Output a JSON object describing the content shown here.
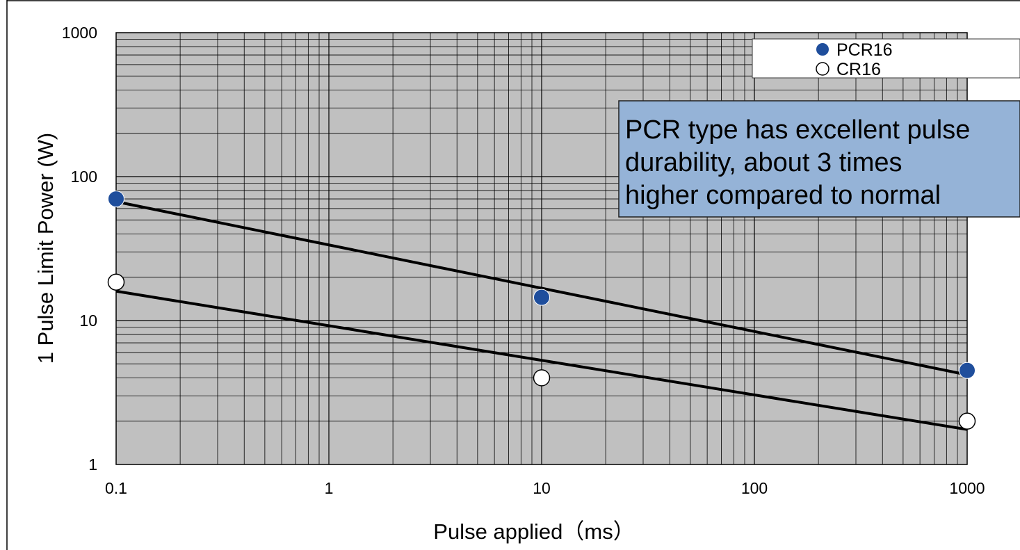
{
  "chart_data": {
    "type": "scatter",
    "xlabel": "Pulse applied（ms）",
    "ylabel": "1 Pulse Limit Power (W)",
    "x_scale": "log",
    "y_scale": "log",
    "xlim": [
      0.1,
      1000
    ],
    "ylim": [
      1,
      1000
    ],
    "x_ticks": [
      0.1,
      1,
      10,
      100,
      1000
    ],
    "x_tick_labels": [
      "0.1",
      "1",
      "10",
      "100",
      "1000"
    ],
    "y_ticks": [
      1,
      10,
      100,
      1000
    ],
    "y_tick_labels": [
      "1",
      "10",
      "100",
      "1000"
    ],
    "grid": true,
    "plot_background": "#c0c0c0",
    "legend_position": "top-right",
    "series": [
      {
        "name": "PCR16",
        "marker": "filled-circle",
        "color": "#1f4e9c",
        "points": [
          {
            "x": 0.1,
            "y": 70
          },
          {
            "x": 10,
            "y": 14.5
          },
          {
            "x": 1000,
            "y": 4.5
          }
        ],
        "trendline": [
          {
            "x": 0.1,
            "y": 67
          },
          {
            "x": 1000,
            "y": 4.2
          }
        ]
      },
      {
        "name": "CR16",
        "marker": "open-circle",
        "color": "#ffffff",
        "points": [
          {
            "x": 0.1,
            "y": 18.5
          },
          {
            "x": 10,
            "y": 4
          },
          {
            "x": 1000,
            "y": 2
          }
        ],
        "trendline": [
          {
            "x": 0.1,
            "y": 16
          },
          {
            "x": 1000,
            "y": 1.75
          }
        ]
      }
    ],
    "annotation": {
      "lines": [
        "PCR type has excellent pulse",
        "durability, about 3 times",
        "higher compared to normal"
      ],
      "color": "#95b3d7"
    }
  }
}
